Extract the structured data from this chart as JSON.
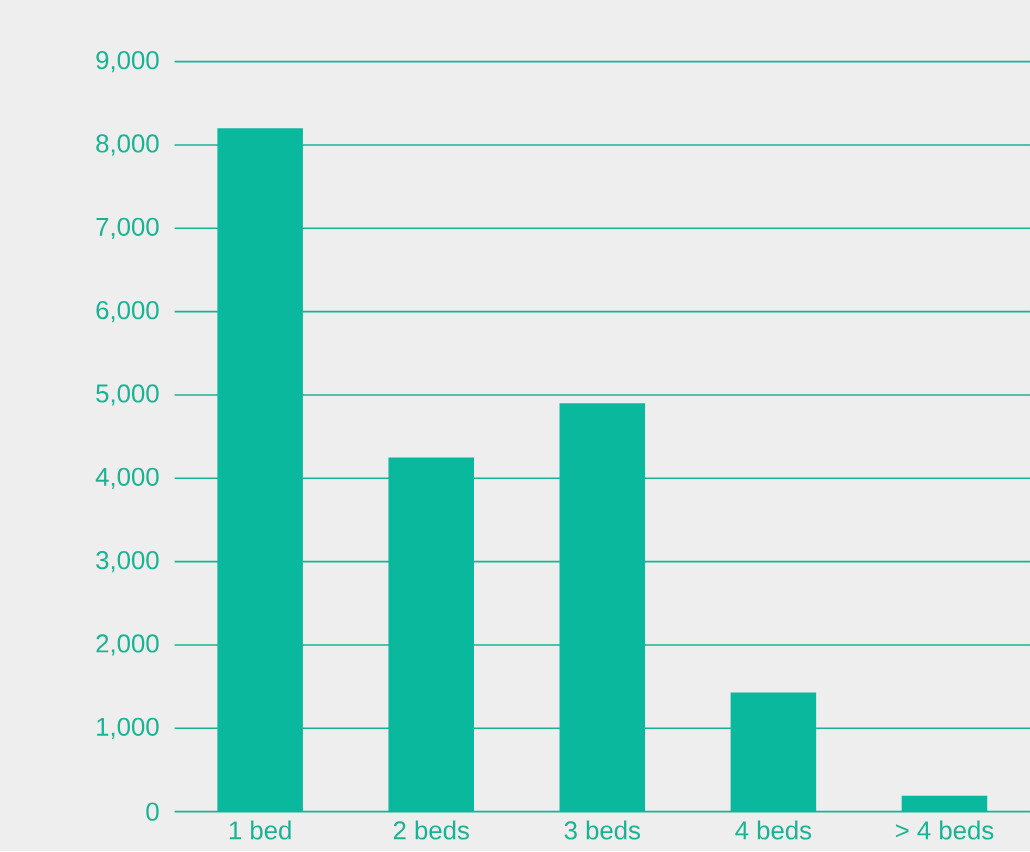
{
  "chart_data": {
    "type": "bar",
    "categories": [
      "1 bed",
      "2 beds",
      "3 beds",
      "4 beds",
      "> 4 beds"
    ],
    "values": [
      8200,
      4250,
      4900,
      1430,
      190
    ],
    "color": "#0ab89e",
    "ylim": [
      0,
      9000
    ],
    "yticks": [
      {
        "value": 0,
        "label": "0"
      },
      {
        "value": 1000,
        "label": "1,000"
      },
      {
        "value": 2000,
        "label": "2,000"
      },
      {
        "value": 3000,
        "label": "3,000"
      },
      {
        "value": 4000,
        "label": "4,000"
      },
      {
        "value": 5000,
        "label": "5,000"
      },
      {
        "value": 6000,
        "label": "6,000"
      },
      {
        "value": 7000,
        "label": "7,000"
      },
      {
        "value": 8000,
        "label": "8,000"
      },
      {
        "value": 9000,
        "label": "9,000"
      }
    ],
    "grid": "y"
  }
}
